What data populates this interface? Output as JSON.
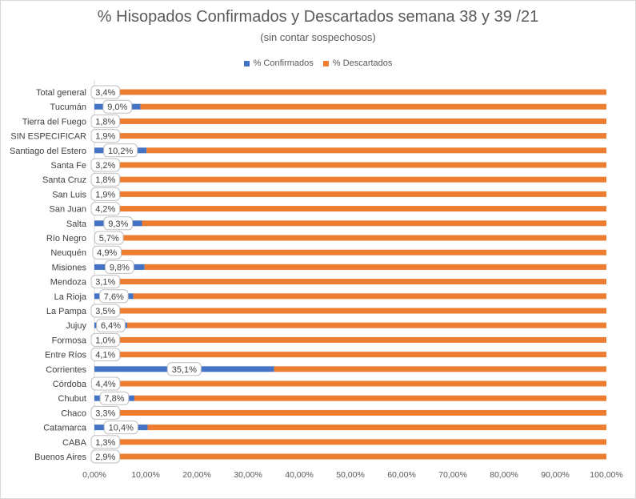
{
  "chart_data": {
    "type": "bar",
    "orientation": "horizontal",
    "stacked": true,
    "title": "% Hisopados Confirmados y Descartados semana 38 y 39 /21",
    "subtitle": "(sin contar sospechosos)",
    "legend_position": "top",
    "grid": false,
    "xlim": [
      0,
      100
    ],
    "x_ticks": [
      "0,00%",
      "10,00%",
      "20,00%",
      "30,00%",
      "40,00%",
      "50,00%",
      "60,00%",
      "70,00%",
      "80,00%",
      "90,00%",
      "100,00%"
    ],
    "categories": [
      "Total general",
      "Tucumán",
      "Tierra del Fuego",
      "SIN ESPECIFICAR",
      "Santiago del Estero",
      "Santa Fe",
      "Santa Cruz",
      "San Luis",
      "San Juan",
      "Salta",
      "Río Negro",
      "Neuquén",
      "Misiones",
      "Mendoza",
      "La Rioja",
      "La Pampa",
      "Jujuy",
      "Formosa",
      "Entre Ríos",
      "Corrientes",
      "Córdoba",
      "Chubut",
      "Chaco",
      "Catamarca",
      "CABA",
      "Buenos Aires"
    ],
    "series": [
      {
        "name": "% Confirmados",
        "color": "#4472c4",
        "values": [
          3.4,
          9.0,
          1.8,
          1.9,
          10.2,
          3.2,
          1.8,
          1.9,
          4.2,
          9.3,
          5.7,
          4.9,
          9.8,
          3.1,
          7.6,
          3.5,
          6.4,
          1.0,
          4.1,
          35.1,
          4.4,
          7.8,
          3.3,
          10.4,
          1.3,
          2.9
        ]
      },
      {
        "name": "% Descartados",
        "color": "#ed7d31",
        "values": [
          96.6,
          91.0,
          98.2,
          98.1,
          89.8,
          96.8,
          98.2,
          98.1,
          95.8,
          90.7,
          94.3,
          95.1,
          90.2,
          96.9,
          92.4,
          96.5,
          93.6,
          99.0,
          95.9,
          64.9,
          95.6,
          92.2,
          96.7,
          89.6,
          98.7,
          97.1
        ]
      }
    ],
    "data_labels": [
      "3,4%",
      "9,0%",
      "1,8%",
      "1,9%",
      "10,2%",
      "3,2%",
      "1,8%",
      "1,9%",
      "4,2%",
      "9,3%",
      "5,7%",
      "4,9%",
      "9,8%",
      "3,1%",
      "7,6%",
      "3,5%",
      "6,4%",
      "1,0%",
      "4,1%",
      "35,1%",
      "4,4%",
      "7,8%",
      "3,3%",
      "10,4%",
      "1,3%",
      "2,9%"
    ]
  }
}
